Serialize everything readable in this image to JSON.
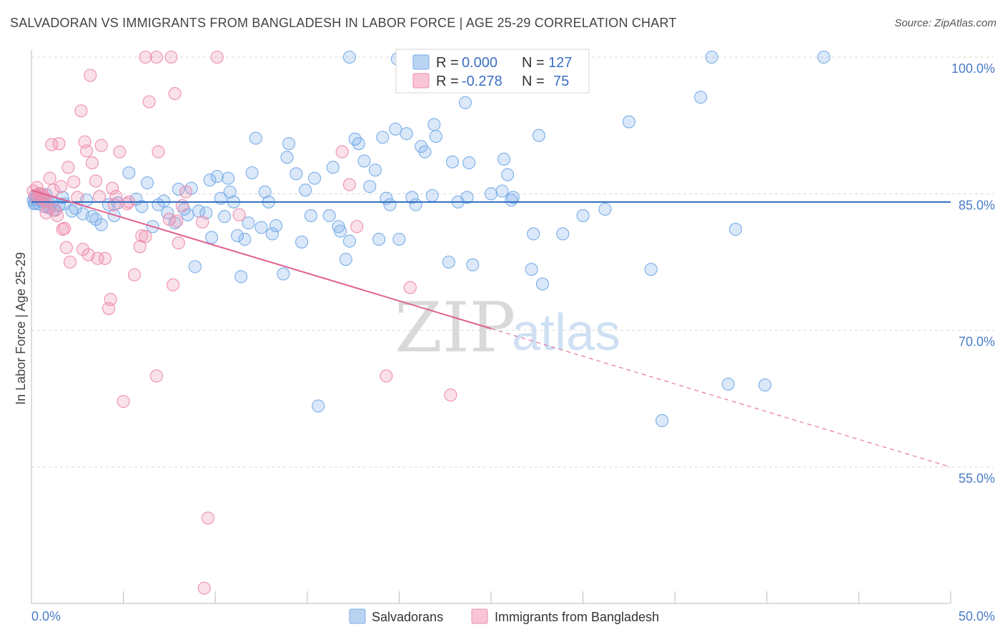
{
  "title": "SALVADORAN VS IMMIGRANTS FROM BANGLADESH IN LABOR FORCE | AGE 25-29 CORRELATION CHART",
  "source": "Source: ZipAtlas.com",
  "watermark": {
    "zip": "ZIP",
    "atlas": "atlas"
  },
  "colors": {
    "blue": "#7aaee8",
    "blue_fill": "rgba(122,174,232,0.28)",
    "blue_line": "#2e6bc0",
    "pink": "#ee8fb0",
    "pink_fill": "rgba(238,143,176,0.28)",
    "pink_line": "#e06090",
    "grid": "#d8d8d8",
    "tick": "#4a7cc7"
  },
  "legend": {
    "r_label": "R =",
    "n_label": "N =",
    "rows": [
      {
        "r": "0.000",
        "n": "127"
      },
      {
        "r": "-0.278",
        "n": "75"
      }
    ]
  },
  "chart_data": {
    "type": "scatter",
    "title": "SALVADORAN VS IMMIGRANTS FROM BANGLADESH IN LABOR FORCE | AGE 25-29 CORRELATION CHART",
    "xlabel": "",
    "ylabel": "In Labor Force | Age 25-29",
    "xlim": [
      0,
      50
    ],
    "ylim": [
      40,
      102
    ],
    "x_ticks_labels": [
      "0.0%",
      "50.0%"
    ],
    "y_ticks": [
      100,
      85,
      70,
      55
    ],
    "y_tick_labels": [
      "100.0%",
      "85.0%",
      "70.0%",
      "55.0%"
    ],
    "series": [
      {
        "name": "Salvadorans",
        "trend": {
          "x": [
            0,
            50
          ],
          "y": [
            84.1,
            84.1
          ]
        },
        "points": [
          [
            0.2,
            84.5
          ],
          [
            0.3,
            84.8
          ],
          [
            0.4,
            83.9
          ],
          [
            0.5,
            84.3
          ],
          [
            0.6,
            84.1
          ],
          [
            0.7,
            83.6
          ],
          [
            0.8,
            84.9
          ],
          [
            0.9,
            84.2
          ],
          [
            1.0,
            83.5
          ],
          [
            1.1,
            84.0
          ],
          [
            1.2,
            83.2
          ],
          [
            1.5,
            83.7
          ],
          [
            1.7,
            84.6
          ],
          [
            1.8,
            83.9
          ],
          [
            2.2,
            83.1
          ],
          [
            2.4,
            83.4
          ],
          [
            2.8,
            82.8
          ],
          [
            3.0,
            84.3
          ],
          [
            3.3,
            82.5
          ],
          [
            3.5,
            82.2
          ],
          [
            3.8,
            81.6
          ],
          [
            4.2,
            83.8
          ],
          [
            4.5,
            82.6
          ],
          [
            4.7,
            84.0
          ],
          [
            5.3,
            87.3
          ],
          [
            5.7,
            84.4
          ],
          [
            6.0,
            83.6
          ],
          [
            6.3,
            86.2
          ],
          [
            6.6,
            81.4
          ],
          [
            6.9,
            83.8
          ],
          [
            7.2,
            84.2
          ],
          [
            7.4,
            82.9
          ],
          [
            7.8,
            81.8
          ],
          [
            8.0,
            85.5
          ],
          [
            8.3,
            83.3
          ],
          [
            8.5,
            82.7
          ],
          [
            8.7,
            85.6
          ],
          [
            8.9,
            77.0
          ],
          [
            9.1,
            83.1
          ],
          [
            9.5,
            82.9
          ],
          [
            9.7,
            86.5
          ],
          [
            9.8,
            80.2
          ],
          [
            10.1,
            86.9
          ],
          [
            10.3,
            84.5
          ],
          [
            10.5,
            82.5
          ],
          [
            10.7,
            86.7
          ],
          [
            10.8,
            85.2
          ],
          [
            11.0,
            84.1
          ],
          [
            11.2,
            80.4
          ],
          [
            11.4,
            75.9
          ],
          [
            11.6,
            80.0
          ],
          [
            11.8,
            81.8
          ],
          [
            12.0,
            87.3
          ],
          [
            12.2,
            91.1
          ],
          [
            12.5,
            81.3
          ],
          [
            12.7,
            85.2
          ],
          [
            12.9,
            84.1
          ],
          [
            13.1,
            80.6
          ],
          [
            13.3,
            81.5
          ],
          [
            13.7,
            76.2
          ],
          [
            13.9,
            89.0
          ],
          [
            14.0,
            90.5
          ],
          [
            14.4,
            87.2
          ],
          [
            14.7,
            79.7
          ],
          [
            14.9,
            85.4
          ],
          [
            15.2,
            82.6
          ],
          [
            15.4,
            86.7
          ],
          [
            15.6,
            61.7
          ],
          [
            16.2,
            82.6
          ],
          [
            16.4,
            87.9
          ],
          [
            16.7,
            81.4
          ],
          [
            16.8,
            80.9
          ],
          [
            17.1,
            77.8
          ],
          [
            17.3,
            79.8
          ],
          [
            17.6,
            91.0
          ],
          [
            17.8,
            90.5
          ],
          [
            18.1,
            88.6
          ],
          [
            18.4,
            85.8
          ],
          [
            18.7,
            87.6
          ],
          [
            18.9,
            80.0
          ],
          [
            19.1,
            91.2
          ],
          [
            19.3,
            84.5
          ],
          [
            19.5,
            83.8
          ],
          [
            19.8,
            92.1
          ],
          [
            20.0,
            80.0
          ],
          [
            20.4,
            91.6
          ],
          [
            20.7,
            84.6
          ],
          [
            20.9,
            83.8
          ],
          [
            21.2,
            90.2
          ],
          [
            21.4,
            89.6
          ],
          [
            21.8,
            84.8
          ],
          [
            21.9,
            92.6
          ],
          [
            22.0,
            91.3
          ],
          [
            22.7,
            77.5
          ],
          [
            22.9,
            88.5
          ],
          [
            23.2,
            84.1
          ],
          [
            23.6,
            95.0
          ],
          [
            23.7,
            84.6
          ],
          [
            23.8,
            88.4
          ],
          [
            24.0,
            77.2
          ],
          [
            25.0,
            85.0
          ],
          [
            25.6,
            85.3
          ],
          [
            25.7,
            88.8
          ],
          [
            25.9,
            87.1
          ],
          [
            26.1,
            84.3
          ],
          [
            26.2,
            84.6
          ],
          [
            27.2,
            76.7
          ],
          [
            27.3,
            80.6
          ],
          [
            27.6,
            91.4
          ],
          [
            27.8,
            75.1
          ],
          [
            28.9,
            80.6
          ],
          [
            30.0,
            82.6
          ],
          [
            31.2,
            83.3
          ],
          [
            32.5,
            92.9
          ],
          [
            33.7,
            76.7
          ],
          [
            34.3,
            60.1
          ],
          [
            36.4,
            95.6
          ],
          [
            37.9,
            64.1
          ],
          [
            38.3,
            81.1
          ],
          [
            39.9,
            64.0
          ],
          [
            17.3,
            100.0
          ],
          [
            19.9,
            99.8
          ],
          [
            37.0,
            100.0
          ],
          [
            43.1,
            100.0
          ],
          [
            0.1,
            84.3
          ],
          [
            0.2,
            84.0
          ],
          [
            0.15,
            83.9
          ]
        ]
      },
      {
        "name": "Immigrants from Bangladesh",
        "trend": {
          "x": [
            0,
            25
          ],
          "y": [
            85.4,
            70.2
          ]
        },
        "trend_dashed": {
          "x": [
            25,
            50
          ],
          "y": [
            70.2,
            55.0
          ]
        },
        "points": [
          [
            0.1,
            85.3
          ],
          [
            0.2,
            84.8
          ],
          [
            0.3,
            85.7
          ],
          [
            0.4,
            84.5
          ],
          [
            0.5,
            85.0
          ],
          [
            0.6,
            84.9
          ],
          [
            0.7,
            84.3
          ],
          [
            0.8,
            82.9
          ],
          [
            0.9,
            83.5
          ],
          [
            1.0,
            86.7
          ],
          [
            1.1,
            90.4
          ],
          [
            1.2,
            85.4
          ],
          [
            1.3,
            83.2
          ],
          [
            1.4,
            82.6
          ],
          [
            1.5,
            90.5
          ],
          [
            1.6,
            85.8
          ],
          [
            1.7,
            81.1
          ],
          [
            1.8,
            81.2
          ],
          [
            1.9,
            79.1
          ],
          [
            2.0,
            87.9
          ],
          [
            2.1,
            77.5
          ],
          [
            2.3,
            86.3
          ],
          [
            2.5,
            84.6
          ],
          [
            2.7,
            94.1
          ],
          [
            2.8,
            78.9
          ],
          [
            2.9,
            90.7
          ],
          [
            3.0,
            89.7
          ],
          [
            3.1,
            78.3
          ],
          [
            3.2,
            98.0
          ],
          [
            3.3,
            88.4
          ],
          [
            3.5,
            86.4
          ],
          [
            3.6,
            77.9
          ],
          [
            3.7,
            84.7
          ],
          [
            3.8,
            90.3
          ],
          [
            4.0,
            77.9
          ],
          [
            4.2,
            72.4
          ],
          [
            4.3,
            73.4
          ],
          [
            4.4,
            85.6
          ],
          [
            4.5,
            83.8
          ],
          [
            4.6,
            84.7
          ],
          [
            4.8,
            89.6
          ],
          [
            5.0,
            62.2
          ],
          [
            5.2,
            83.9
          ],
          [
            5.3,
            84.1
          ],
          [
            5.6,
            76.1
          ],
          [
            5.9,
            79.2
          ],
          [
            6.0,
            80.4
          ],
          [
            6.2,
            80.3
          ],
          [
            6.4,
            95.1
          ],
          [
            6.8,
            65.0
          ],
          [
            6.9,
            89.6
          ],
          [
            7.5,
            82.2
          ],
          [
            7.7,
            75.0
          ],
          [
            7.8,
            96.0
          ],
          [
            7.9,
            82.0
          ],
          [
            8.0,
            79.6
          ],
          [
            8.2,
            83.7
          ],
          [
            8.4,
            85.2
          ],
          [
            9.3,
            81.9
          ],
          [
            9.4,
            41.7
          ],
          [
            9.6,
            49.4
          ],
          [
            10.1,
            100.0
          ],
          [
            11.3,
            82.7
          ],
          [
            16.9,
            89.6
          ],
          [
            17.3,
            86.0
          ],
          [
            17.7,
            81.4
          ],
          [
            19.3,
            65.0
          ],
          [
            20.6,
            74.7
          ],
          [
            22.8,
            62.9
          ],
          [
            6.2,
            100.0
          ],
          [
            6.8,
            100.0
          ],
          [
            7.6,
            100.0
          ],
          [
            0.4,
            85.0
          ],
          [
            0.6,
            84.6
          ],
          [
            0.8,
            84.2
          ]
        ]
      }
    ]
  },
  "bottom_legend": [
    {
      "label": "Salvadorans"
    },
    {
      "label": "Immigrants from Bangladesh"
    }
  ]
}
